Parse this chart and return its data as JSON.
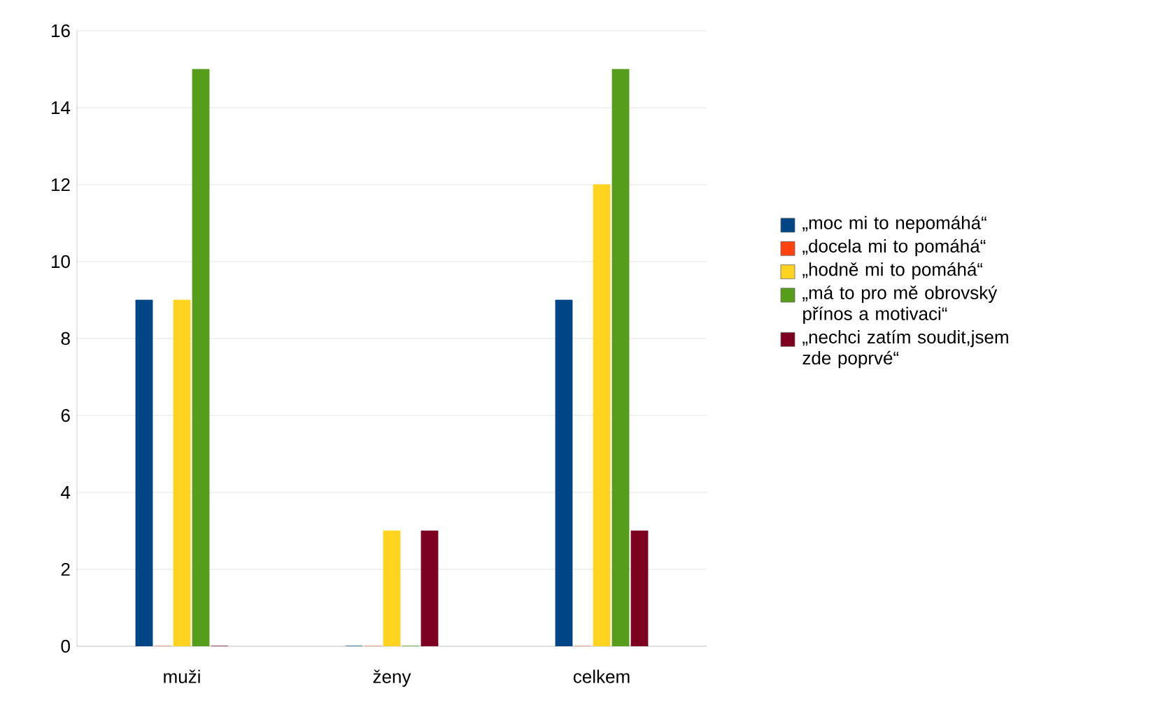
{
  "chart_data": {
    "type": "bar",
    "categories": [
      "muži",
      "ženy",
      "celkem"
    ],
    "series": [
      {
        "name": "„moc mi to nepomáhá“",
        "color": "#004586",
        "values": [
          9,
          0,
          9
        ]
      },
      {
        "name": "„docela mi to pomáhá“",
        "color": "#ff420e",
        "values": [
          0,
          0,
          0
        ]
      },
      {
        "name": "„hodně mi to pomáhá“",
        "color": "#ffd320",
        "values": [
          9,
          3,
          12
        ]
      },
      {
        "name": "„má to pro mě obrovský přínos a motivaci“",
        "color": "#579d1c",
        "values": [
          15,
          0,
          15
        ]
      },
      {
        "name": "„nechci zatím soudit,jsem zde poprvé“",
        "color": "#7e0021",
        "values": [
          0,
          3,
          3
        ]
      }
    ],
    "ylim": [
      0,
      16
    ],
    "yticks": [
      0,
      2,
      4,
      6,
      8,
      10,
      12,
      14,
      16
    ],
    "grid": "y",
    "legend": "right"
  }
}
